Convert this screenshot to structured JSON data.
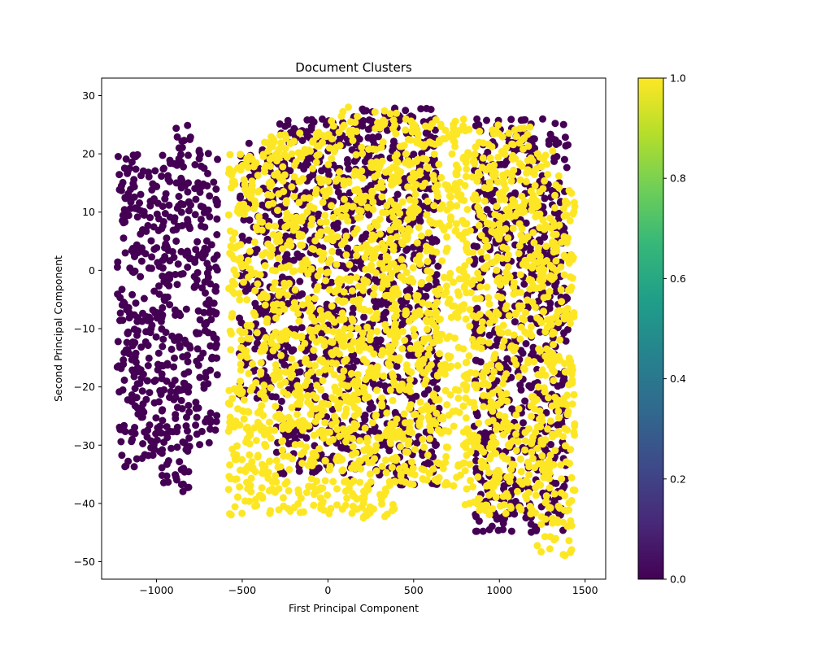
{
  "chart_data": {
    "type": "scatter",
    "title": "Document Clusters",
    "xlabel": "First Principal Component",
    "ylabel": "Second Principal Component",
    "xlim": [
      -1320,
      1620
    ],
    "ylim": [
      -53,
      33
    ],
    "xticks": [
      -1000,
      -500,
      0,
      500,
      1000,
      1500
    ],
    "yticks": [
      -50,
      -40,
      -30,
      -20,
      -10,
      0,
      10,
      20,
      30
    ],
    "xtick_labels": [
      "−1000",
      "−500",
      "0",
      "500",
      "1000",
      "1500"
    ],
    "ytick_labels": [
      "−50",
      "−40",
      "−30",
      "−20",
      "−10",
      "0",
      "10",
      "20",
      "30"
    ],
    "grid": false,
    "colormap": "viridis",
    "colorbar": {
      "range": [
        0.0,
        1.0
      ],
      "ticks": [
        0.0,
        0.2,
        0.4,
        0.6,
        0.8,
        1.0
      ],
      "tick_labels": [
        "0.0",
        "0.2",
        "0.4",
        "0.6",
        "0.8",
        "1.0"
      ],
      "colors": [
        "#440154",
        "#482878",
        "#3e4989",
        "#31688e",
        "#26828e",
        "#1f9e89",
        "#35b779",
        "#6ece58",
        "#b5de2b",
        "#fde725"
      ]
    },
    "series": [
      {
        "label_value": 0,
        "color": "#440154",
        "regions": [
          {
            "x": [
              -1230,
              -1080
            ],
            "y": [
              -34,
              20
            ]
          },
          {
            "x": [
              -1090,
              -960
            ],
            "y": [
              -32,
              18
            ]
          },
          {
            "x": [
              -970,
              -800
            ],
            "y": [
              -38,
              25
            ]
          },
          {
            "x": [
              -780,
              -640
            ],
            "y": [
              -30,
              22
            ]
          },
          {
            "x": [
              -520,
              -300
            ],
            "y": [
              -22,
              22
            ]
          },
          {
            "x": [
              -300,
              100
            ],
            "y": [
              -35,
              26
            ]
          },
          {
            "x": [
              100,
              650
            ],
            "y": [
              -37,
              28
            ]
          },
          {
            "x": [
              850,
              1400
            ],
            "y": [
              -45,
              26
            ]
          }
        ]
      },
      {
        "label_value": 1,
        "color": "#fde725",
        "regions": [
          {
            "x": [
              -580,
              -380
            ],
            "y": [
              -42,
              20
            ]
          },
          {
            "x": [
              -380,
              0
            ],
            "y": [
              -42,
              24
            ]
          },
          {
            "x": [
              0,
              400
            ],
            "y": [
              -43,
              28
            ]
          },
          {
            "x": [
              380,
              800
            ],
            "y": [
              -37,
              26
            ]
          },
          {
            "x": [
              800,
              1200
            ],
            "y": [
              -42,
              25
            ]
          },
          {
            "x": [
              1200,
              1440
            ],
            "y": [
              -49,
              21
            ]
          }
        ]
      }
    ]
  }
}
